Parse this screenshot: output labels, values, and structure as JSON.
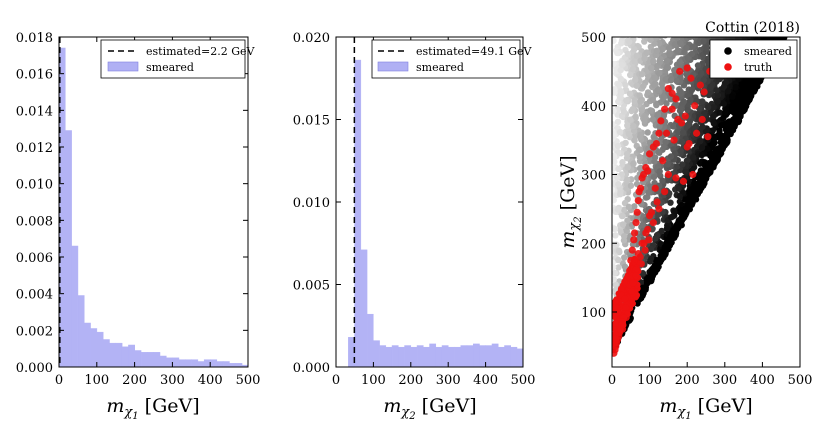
{
  "chart_data": [
    {
      "type": "histogram",
      "id": "m1",
      "xlabel": "m_{χ1} [GeV]",
      "xlabel_main": "m",
      "xlabel_sub": "χ",
      "xlabel_subsub": "1",
      "xlabel_unit": "[GeV]",
      "xlim": [
        0,
        500
      ],
      "ylim": [
        0,
        0.018
      ],
      "xticks": [
        "0",
        "100",
        "200",
        "300",
        "400",
        "500"
      ],
      "yticks": [
        "0.000",
        "0.002",
        "0.004",
        "0.006",
        "0.008",
        "0.010",
        "0.012",
        "0.014",
        "0.016",
        "0.018"
      ],
      "bin_width": 16.7,
      "bins_start": 0,
      "values": [
        0.0174,
        0.0129,
        0.0066,
        0.0039,
        0.0024,
        0.0021,
        0.0019,
        0.0015,
        0.0013,
        0.0013,
        0.0011,
        0.0012,
        0.0009,
        0.0008,
        0.0008,
        0.0008,
        0.0006,
        0.0005,
        0.0005,
        0.0004,
        0.0004,
        0.0004,
        0.0003,
        0.0004,
        0.0004,
        0.0003,
        0.0003,
        0.0002,
        0.0002,
        0.0001
      ],
      "estimate_line": 2.2,
      "legend": {
        "line_label": "estimated=2.2 GeV",
        "fill_label": "smeared",
        "position": "top-right"
      }
    },
    {
      "type": "histogram",
      "id": "m2",
      "xlabel": "m_{χ2} [GeV]",
      "xlabel_main": "m",
      "xlabel_sub": "χ",
      "xlabel_subsub": "2",
      "xlabel_unit": "[GeV]",
      "xlim": [
        0,
        500
      ],
      "ylim": [
        0,
        0.02
      ],
      "xticks": [
        "0",
        "100",
        "200",
        "300",
        "400",
        "500"
      ],
      "yticks": [
        "0.000",
        "0.005",
        "0.010",
        "0.015",
        "0.020"
      ],
      "bin_width": 16.7,
      "bins_start": 33,
      "values": [
        0.0018,
        0.0186,
        0.0071,
        0.0032,
        0.0016,
        0.0013,
        0.0012,
        0.0013,
        0.0012,
        0.0013,
        0.0012,
        0.0013,
        0.0012,
        0.0014,
        0.0012,
        0.0013,
        0.0012,
        0.0012,
        0.0013,
        0.0013,
        0.0014,
        0.0013,
        0.0013,
        0.0014,
        0.0012,
        0.0013,
        0.0012,
        0.0011,
        0.0012
      ],
      "estimate_line": 49.1,
      "legend": {
        "line_label": "estimated=49.1 GeV",
        "fill_label": "smeared",
        "position": "top-right"
      }
    },
    {
      "type": "scatter",
      "id": "scatter",
      "title": "Cottin (2018)",
      "xlabel": "m_{χ1} [GeV]",
      "ylabel": "m_{χ2} [GeV]",
      "xlabel_main": "m",
      "xlabel_sub": "χ",
      "xlabel_subsub": "1",
      "xlabel_unit": "[GeV]",
      "ylabel_main": "m",
      "ylabel_sub": "χ",
      "ylabel_subsub": "2",
      "ylabel_unit": "[GeV]",
      "xlim": [
        0,
        500
      ],
      "ylim": [
        20,
        500
      ],
      "xticks": [
        "0",
        "100",
        "200",
        "300",
        "400",
        "500"
      ],
      "yticks": [
        "100",
        "200",
        "300",
        "400",
        "500"
      ],
      "series": [
        {
          "name": "smeared",
          "color": "#000000",
          "note": "points with m_χ2 ≥ m_χ1 + 40, shaded grey to black"
        },
        {
          "name": "truth",
          "color": "#ee1111"
        }
      ],
      "truth_points": [
        [
          18,
          65
        ],
        [
          22,
          78
        ],
        [
          27,
          92
        ],
        [
          30,
          110
        ],
        [
          33,
          120
        ],
        [
          38,
          128
        ],
        [
          40,
          140
        ],
        [
          44,
          150
        ],
        [
          47,
          160
        ],
        [
          50,
          175
        ],
        [
          54,
          190
        ],
        [
          58,
          205
        ],
        [
          60,
          215
        ],
        [
          64,
          230
        ],
        [
          67,
          245
        ],
        [
          70,
          262
        ],
        [
          72,
          275
        ],
        [
          76,
          280
        ],
        [
          80,
          295
        ],
        [
          84,
          300
        ],
        [
          90,
          310
        ],
        [
          95,
          305
        ],
        [
          100,
          330
        ],
        [
          110,
          340
        ],
        [
          118,
          345
        ],
        [
          125,
          360
        ],
        [
          130,
          378
        ],
        [
          140,
          395
        ],
        [
          150,
          425
        ],
        [
          160,
          418
        ],
        [
          170,
          410
        ],
        [
          175,
          380
        ],
        [
          185,
          375
        ],
        [
          195,
          385
        ],
        [
          200,
          340
        ],
        [
          205,
          345
        ],
        [
          210,
          440
        ],
        [
          220,
          400
        ],
        [
          225,
          360
        ],
        [
          235,
          430
        ],
        [
          245,
          420
        ],
        [
          255,
          355
        ],
        [
          165,
          350
        ],
        [
          150,
          300
        ],
        [
          120,
          260
        ],
        [
          100,
          240
        ],
        [
          90,
          215
        ],
        [
          80,
          200
        ],
        [
          70,
          185
        ],
        [
          60,
          170
        ],
        [
          55,
          150
        ],
        [
          45,
          125
        ],
        [
          35,
          100
        ],
        [
          25,
          85
        ],
        [
          15,
          60
        ],
        [
          10,
          50
        ],
        [
          20,
          70
        ],
        [
          30,
          95
        ],
        [
          42,
          115
        ],
        [
          52,
          135
        ],
        [
          62,
          155
        ],
        [
          75,
          180
        ],
        [
          85,
          200
        ],
        [
          95,
          220
        ],
        [
          105,
          245
        ],
        [
          115,
          280
        ],
        [
          135,
          320
        ],
        [
          145,
          360
        ],
        [
          160,
          395
        ],
        [
          180,
          450
        ],
        [
          200,
          455
        ],
        [
          260,
          450
        ],
        [
          240,
          380
        ],
        [
          215,
          300
        ],
        [
          190,
          290
        ],
        [
          170,
          295
        ],
        [
          140,
          275
        ],
        [
          125,
          250
        ],
        [
          110,
          230
        ],
        [
          98,
          205
        ],
        [
          88,
          190
        ],
        [
          78,
          170
        ],
        [
          68,
          150
        ],
        [
          58,
          130
        ],
        [
          48,
          110
        ],
        [
          38,
          92
        ],
        [
          28,
          75
        ],
        [
          12,
          55
        ],
        [
          8,
          45
        ],
        [
          5,
          40
        ]
      ]
    }
  ]
}
